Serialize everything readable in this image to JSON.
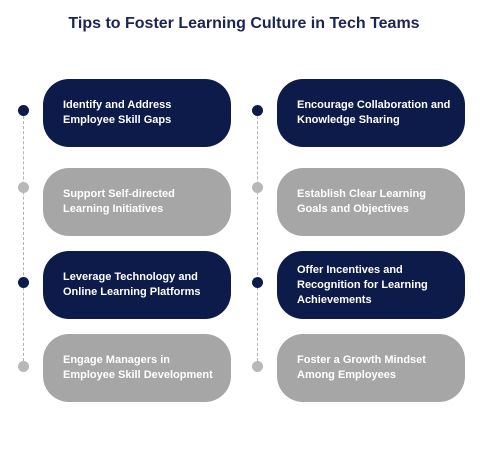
{
  "title": "Tips to Foster Learning Culture in Tech Teams",
  "colors": {
    "dark": "#0d1b4b",
    "light": "#a6a6a6",
    "title": "#1b2452"
  },
  "left_column": [
    {
      "text": "Identify and Address Employee Skill Gaps",
      "style": "dark"
    },
    {
      "text": "Support Self-directed Learning Initiatives",
      "style": "light"
    },
    {
      "text": "Leverage Technology and Online Learning Platforms",
      "style": "dark"
    },
    {
      "text": "Engage Managers in Employee Skill Development",
      "style": "light"
    }
  ],
  "right_column": [
    {
      "text": "Encourage Collaboration and Knowledge Sharing",
      "style": "dark"
    },
    {
      "text": "Establish Clear Learning Goals and Objectives",
      "style": "light"
    },
    {
      "text": "Offer Incentives and Recognition for Learning Achievements",
      "style": "dark"
    },
    {
      "text": "Foster a Growth Mindset Among Employees",
      "style": "light"
    }
  ]
}
